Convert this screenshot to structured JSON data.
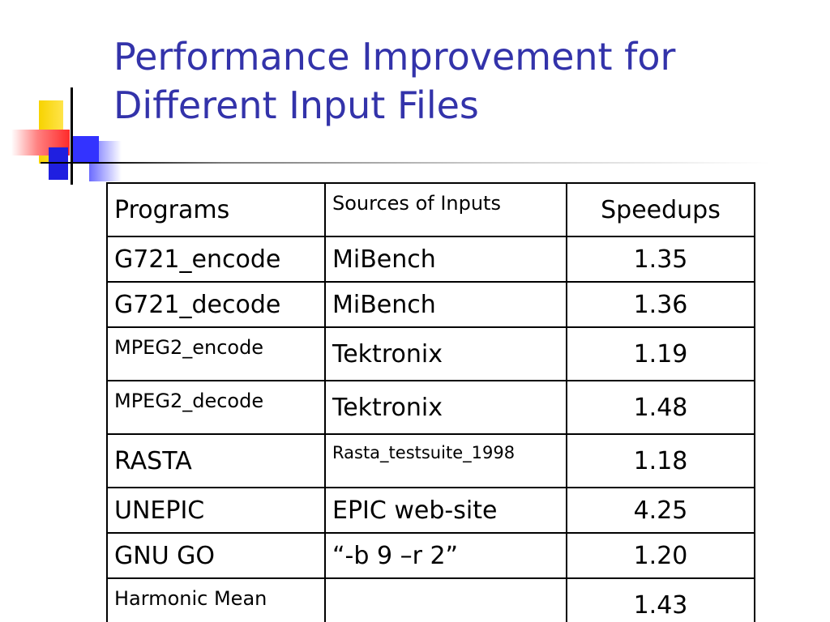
{
  "slide": {
    "title": "Performance Improvement for Different Input Files"
  },
  "table": {
    "headers": [
      "Programs",
      "Sources of Inputs",
      "Speedups"
    ],
    "rows": [
      {
        "program": "G721_encode",
        "source": "MiBench",
        "speedup": "1.35"
      },
      {
        "program": "G721_decode",
        "source": "MiBench",
        "speedup": "1.36"
      },
      {
        "program": "MPEG2_encode",
        "source": "Tektronix",
        "speedup": "1.19"
      },
      {
        "program": "MPEG2_decode",
        "source": "Tektronix",
        "speedup": "1.48"
      },
      {
        "program": "RASTA",
        "source": "Rasta_testsuite_1998",
        "speedup": "1.18"
      },
      {
        "program": "UNEPIC",
        "source": "EPIC web-site",
        "speedup": "4.25"
      },
      {
        "program": "GNU GO",
        "source": "“-b 9 –r 2”",
        "speedup": "1.20"
      },
      {
        "program": "Harmonic Mean",
        "source": "",
        "speedup": "1.43"
      }
    ]
  },
  "colors": {
    "title": "#3333aa",
    "accent_yellow": "#f7d300",
    "accent_red": "#ff2a2a",
    "accent_blue": "#3333ff"
  }
}
